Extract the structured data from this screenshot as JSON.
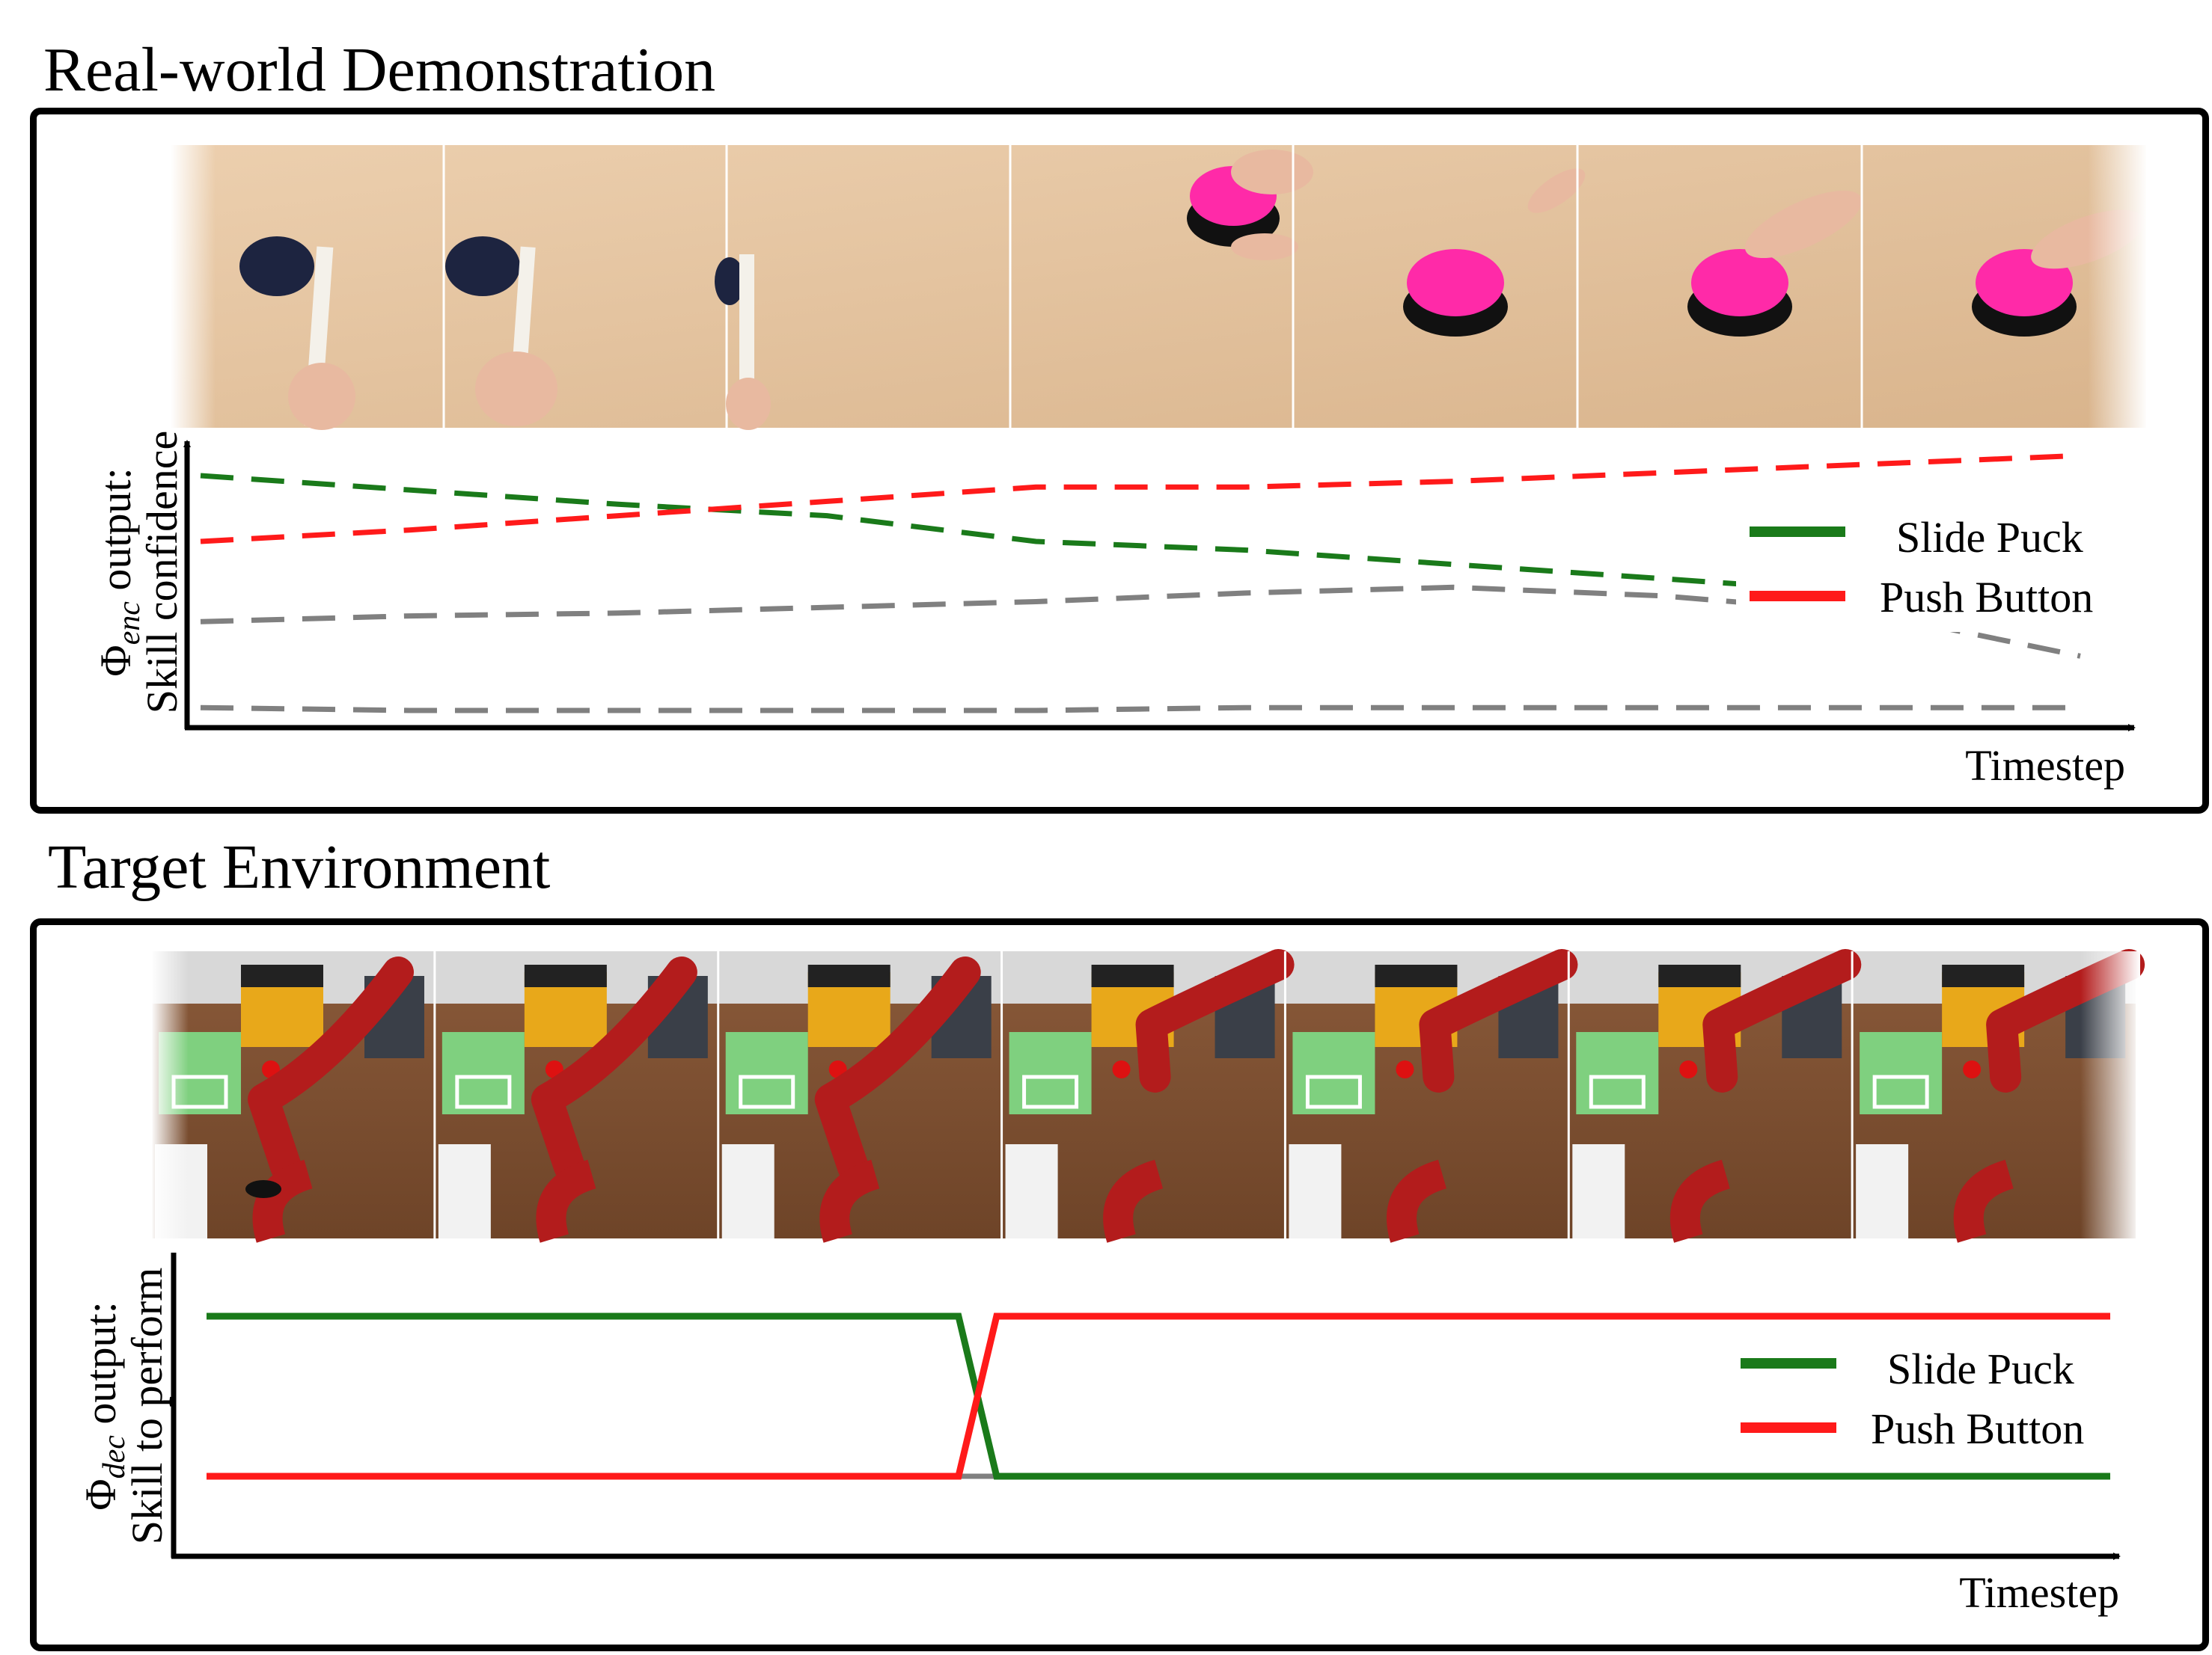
{
  "sections": [
    {
      "title": "Real-world Demonstration",
      "ylabel_line1_symbol": "Φ",
      "ylabel_line1_sub": "enc",
      "ylabel_line1_rest": " output:",
      "ylabel_line2": "Skill confidence",
      "xlabel": "Timestep",
      "filmstrip_frames": [
        "puck",
        "puck",
        "puck",
        "button-hand",
        "button",
        "button-finger",
        "button-finger"
      ]
    },
    {
      "title": "Target Environment",
      "ylabel_line1_symbol": "Φ",
      "ylabel_line1_sub": "dec",
      "ylabel_line1_rest": " output:",
      "ylabel_line2": "Skill to perform",
      "xlabel": "Timestep",
      "filmstrip_frames": [
        "robot",
        "robot",
        "robot",
        "robot",
        "robot",
        "robot",
        "robot"
      ]
    }
  ],
  "legend": [
    {
      "label": "Slide Puck",
      "color": "#1a7a1a"
    },
    {
      "label": "Push Button",
      "color": "#ff1a1a"
    }
  ],
  "colors": {
    "slide_puck": "#1a7a1a",
    "push_button": "#ff1a1a",
    "other": "#808080"
  },
  "chart_data": [
    {
      "type": "line",
      "style": "dashed",
      "x": [
        0,
        1,
        2,
        3,
        4,
        5,
        6,
        7,
        8,
        9
      ],
      "series": [
        {
          "name": "Slide Puck",
          "values": [
            0.88,
            0.83,
            0.78,
            0.74,
            0.65,
            0.62,
            0.57,
            0.52,
            0.47,
            0.41
          ]
        },
        {
          "name": "Push Button",
          "values": [
            0.65,
            0.69,
            0.74,
            0.79,
            0.84,
            0.84,
            0.86,
            0.89,
            0.92,
            0.95
          ]
        },
        {
          "values": [
            0.37,
            0.39,
            0.4,
            0.42,
            0.44,
            0.47,
            0.49,
            0.46,
            0.4,
            0.25
          ]
        },
        {
          "values": [
            0.07,
            0.06,
            0.06,
            0.06,
            0.06,
            0.07,
            0.07,
            0.07,
            0.07,
            0.07
          ]
        }
      ]
    },
    {
      "type": "line",
      "style": "solid",
      "x": [
        0,
        0.395,
        0.415,
        1
      ],
      "series": [
        {
          "name": "Slide Puck",
          "values": [
            1,
            1,
            0,
            0
          ]
        },
        {
          "name": "Push Button",
          "values": [
            0,
            0,
            1,
            1
          ]
        },
        {
          "values": [
            0,
            0,
            0,
            0
          ]
        }
      ]
    }
  ]
}
